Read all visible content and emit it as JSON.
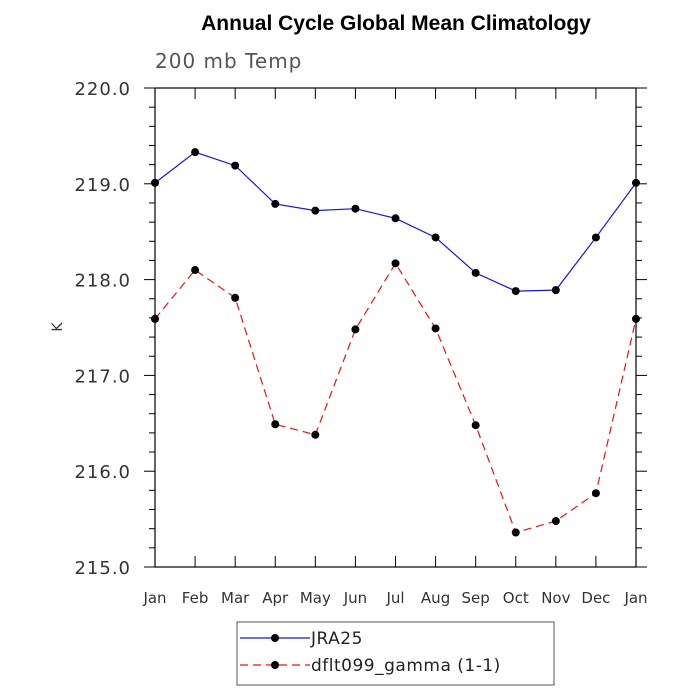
{
  "chart_data": {
    "type": "line",
    "title": "Annual Cycle Global Mean Climatology",
    "subtitle": "200 mb Temp",
    "xlabel": "",
    "ylabel": "K",
    "categories": [
      "Jan",
      "Feb",
      "Mar",
      "Apr",
      "May",
      "Jun",
      "Jul",
      "Aug",
      "Sep",
      "Oct",
      "Nov",
      "Dec",
      "Jan"
    ],
    "ylim": [
      215.0,
      220.0
    ],
    "yticks": [
      "215.0",
      "216.0",
      "217.0",
      "218.0",
      "219.0",
      "220.0"
    ],
    "grid": false,
    "legend_position": "bottom",
    "series": [
      {
        "name": "JRA25",
        "color": "#1414e6",
        "line_style": "solid",
        "values": [
          219.01,
          219.33,
          219.19,
          218.79,
          218.72,
          218.74,
          218.64,
          218.44,
          218.07,
          217.88,
          217.89,
          218.44,
          219.01
        ]
      },
      {
        "name": "dflt099_gamma (1-1)",
        "color": "#e61414",
        "line_style": "dashed",
        "values": [
          217.59,
          218.1,
          217.81,
          216.49,
          216.38,
          217.48,
          218.17,
          217.49,
          216.48,
          215.36,
          215.48,
          215.77,
          217.59
        ]
      }
    ]
  }
}
